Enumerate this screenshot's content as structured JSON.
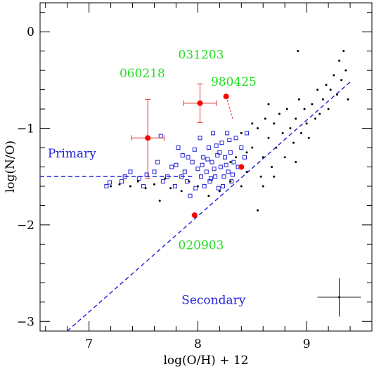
{
  "chart_data": {
    "type": "scatter",
    "xlabel": "log(O/H) + 12",
    "ylabel": "log(N/O)",
    "xlim": [
      6.55,
      9.6
    ],
    "ylim": [
      -3.1,
      0.3
    ],
    "x_ticks": [
      "7",
      "8",
      "9"
    ],
    "y_ticks": [
      "0",
      "−1",
      "−2",
      "−3"
    ],
    "x_tick_values": [
      7,
      8,
      9
    ],
    "y_tick_values": [
      0,
      -1,
      -2,
      -3
    ],
    "reference_lines": [
      {
        "label": "Primary",
        "color": "#1f1fd9",
        "dash": true,
        "points": [
          [
            6.55,
            -1.5
          ],
          [
            7.95,
            -1.5
          ]
        ]
      },
      {
        "label": "Secondary",
        "color": "#1f1fd9",
        "dash": true,
        "points": [
          [
            6.8,
            -3.1
          ],
          [
            9.4,
            -0.52
          ]
        ]
      }
    ],
    "line_labels": [
      {
        "text": "Primary",
        "x": 6.62,
        "y": -1.3,
        "color": "#1f1fd9"
      },
      {
        "text": "Secondary",
        "x": 7.85,
        "y": -2.82,
        "color": "#1f1fd9"
      }
    ],
    "grb_points": [
      {
        "name": "060218",
        "x": 7.54,
        "y": -1.1,
        "xerr": 0.15,
        "yerr_low": 0.42,
        "yerr_high": 0.4
      },
      {
        "name": "031203",
        "x": 8.02,
        "y": -0.74,
        "xerr": 0.15,
        "yerr_low": 0.2,
        "yerr_high": 0.2
      },
      {
        "name": "980425",
        "x": 8.26,
        "y": -0.67,
        "xerr": 0,
        "yerr_low": 0,
        "yerr_high": 0
      },
      {
        "name": "020903",
        "x": 7.97,
        "y": -1.9,
        "xerr": 0,
        "yerr_low": 0,
        "yerr_high": 0
      },
      {
        "name": "",
        "x": 8.4,
        "y": -1.4,
        "xerr": 0,
        "yerr_low": 0,
        "yerr_high": 0
      }
    ],
    "grb_labels": [
      {
        "text": "060218",
        "x": 7.28,
        "y": -0.47
      },
      {
        "text": "031203",
        "x": 7.82,
        "y": -0.28
      },
      {
        "text": "980425",
        "x": 8.12,
        "y": -0.56
      },
      {
        "text": "020903",
        "x": 7.82,
        "y": -2.25
      }
    ],
    "grb_color": "#ff0000",
    "errorbar_color": "#dd3030",
    "label_color": "#22dd22",
    "connector": [
      [
        8.26,
        -0.67
      ],
      [
        8.32,
        -0.9
      ]
    ],
    "representative_error": {
      "x": 9.3,
      "y": -2.75,
      "xerr": 0.2,
      "yerr": 0.2
    },
    "series": [
      {
        "name": "",
        "marker": "open-square",
        "color": "#1f1fd9",
        "points": [
          [
            7.16,
            -1.6
          ],
          [
            7.19,
            -1.56
          ],
          [
            7.3,
            -1.55
          ],
          [
            7.33,
            -1.5
          ],
          [
            7.38,
            -1.45
          ],
          [
            7.46,
            -1.52
          ],
          [
            7.5,
            -1.6
          ],
          [
            7.53,
            -1.48
          ],
          [
            7.6,
            -1.45
          ],
          [
            7.63,
            -1.35
          ],
          [
            7.66,
            -1.08
          ],
          [
            7.68,
            -1.55
          ],
          [
            7.72,
            -1.5
          ],
          [
            7.76,
            -1.4
          ],
          [
            7.79,
            -1.6
          ],
          [
            7.82,
            -1.2
          ],
          [
            7.85,
            -1.5
          ],
          [
            7.88,
            -1.45
          ],
          [
            7.9,
            -1.55
          ],
          [
            7.93,
            -1.7
          ],
          [
            7.95,
            -1.35
          ],
          [
            7.98,
            -1.62
          ],
          [
            8.0,
            -1.42
          ],
          [
            8.02,
            -1.1
          ],
          [
            8.03,
            -1.5
          ],
          [
            8.05,
            -1.3
          ],
          [
            8.06,
            -1.6
          ],
          [
            8.08,
            -1.45
          ],
          [
            8.1,
            -1.2
          ],
          [
            8.11,
            -1.55
          ],
          [
            8.13,
            -1.35
          ],
          [
            8.14,
            -1.05
          ],
          [
            8.16,
            -1.5
          ],
          [
            8.18,
            -1.28
          ],
          [
            8.19,
            -1.62
          ],
          [
            8.21,
            -1.4
          ],
          [
            8.22,
            -1.15
          ],
          [
            8.24,
            -1.5
          ],
          [
            8.25,
            -1.3
          ],
          [
            8.27,
            -1.05
          ],
          [
            8.28,
            -1.45
          ],
          [
            8.3,
            -1.25
          ],
          [
            8.31,
            -1.55
          ],
          [
            8.33,
            -1.35
          ],
          [
            8.35,
            -1.1
          ],
          [
            8.37,
            -1.4
          ],
          [
            8.4,
            -1.2
          ],
          [
            8.43,
            -1.3
          ],
          [
            8.45,
            -1.05
          ],
          [
            7.91,
            -1.3
          ],
          [
            7.97,
            -1.22
          ],
          [
            8.04,
            -1.38
          ],
          [
            8.09,
            -1.32
          ],
          [
            8.15,
            -1.42
          ],
          [
            8.2,
            -1.25
          ],
          [
            8.26,
            -1.38
          ],
          [
            8.32,
            -1.48
          ],
          [
            7.8,
            -1.38
          ],
          [
            7.86,
            -1.28
          ],
          [
            8.12,
            -1.52
          ],
          [
            8.17,
            -1.18
          ],
          [
            8.23,
            -1.6
          ],
          [
            8.29,
            -1.12
          ]
        ]
      },
      {
        "name": "",
        "marker": "dot",
        "color": "#000000",
        "points": [
          [
            7.2,
            -1.6
          ],
          [
            7.28,
            -1.58
          ],
          [
            7.38,
            -1.6
          ],
          [
            7.45,
            -1.55
          ],
          [
            7.52,
            -1.62
          ],
          [
            7.6,
            -1.58
          ],
          [
            7.65,
            -1.75
          ],
          [
            7.7,
            -1.52
          ],
          [
            7.75,
            -1.62
          ],
          [
            7.85,
            -1.65
          ],
          [
            7.92,
            -1.55
          ],
          [
            8.0,
            -1.6
          ],
          [
            8.1,
            -1.7
          ],
          [
            8.2,
            -1.65
          ],
          [
            8.3,
            -1.55
          ],
          [
            8.35,
            -1.3
          ],
          [
            8.4,
            -1.6
          ],
          [
            8.45,
            -1.25
          ],
          [
            8.5,
            -1.2
          ],
          [
            8.55,
            -1.0
          ],
          [
            8.58,
            -1.5
          ],
          [
            8.6,
            -1.3
          ],
          [
            8.62,
            -0.9
          ],
          [
            8.65,
            -1.1
          ],
          [
            8.68,
            -1.4
          ],
          [
            8.7,
            -0.95
          ],
          [
            8.72,
            -1.2
          ],
          [
            8.75,
            -0.85
          ],
          [
            8.78,
            -1.05
          ],
          [
            8.8,
            -1.3
          ],
          [
            8.82,
            -0.8
          ],
          [
            8.85,
            -1.0
          ],
          [
            8.88,
            -1.15
          ],
          [
            8.9,
            -0.9
          ],
          [
            8.93,
            -0.7
          ],
          [
            8.95,
            -1.05
          ],
          [
            8.98,
            -0.8
          ],
          [
            9.0,
            -0.95
          ],
          [
            9.02,
            -1.1
          ],
          [
            9.05,
            -0.75
          ],
          [
            9.08,
            -0.9
          ],
          [
            9.1,
            -0.6
          ],
          [
            9.12,
            -0.85
          ],
          [
            9.15,
            -0.7
          ],
          [
            9.18,
            -0.55
          ],
          [
            9.2,
            -0.8
          ],
          [
            9.22,
            -0.6
          ],
          [
            9.25,
            -0.45
          ],
          [
            9.28,
            -0.65
          ],
          [
            9.3,
            -0.3
          ],
          [
            9.32,
            -0.5
          ],
          [
            9.34,
            -0.2
          ],
          [
            9.36,
            -0.4
          ],
          [
            9.38,
            -0.7
          ],
          [
            8.9,
            -1.35
          ],
          [
            8.6,
            -1.6
          ],
          [
            8.55,
            -1.85
          ],
          [
            8.7,
            -1.5
          ],
          [
            8.45,
            -1.45
          ],
          [
            8.92,
            -0.2
          ],
          [
            8.4,
            -1.05
          ],
          [
            8.5,
            -0.95
          ],
          [
            8.65,
            -0.75
          ],
          [
            8.3,
            -1.35
          ]
        ]
      }
    ]
  }
}
